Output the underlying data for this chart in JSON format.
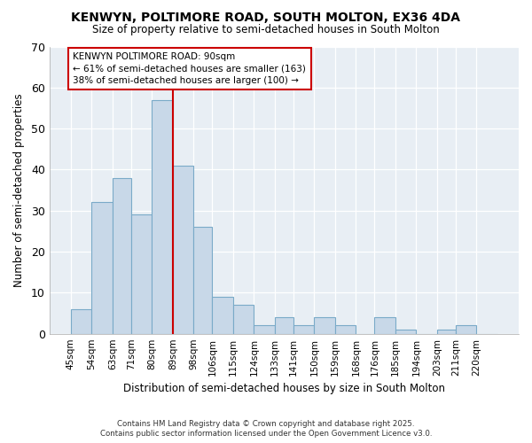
{
  "title": "KENWYN, POLTIMORE ROAD, SOUTH MOLTON, EX36 4DA",
  "subtitle": "Size of property relative to semi-detached houses in South Molton",
  "xlabel": "Distribution of semi-detached houses by size in South Molton",
  "ylabel": "Number of semi-detached properties",
  "bin_labels": [
    "45sqm",
    "54sqm",
    "63sqm",
    "71sqm",
    "80sqm",
    "89sqm",
    "98sqm",
    "106sqm",
    "115sqm",
    "124sqm",
    "133sqm",
    "141sqm",
    "150sqm",
    "159sqm",
    "168sqm",
    "176sqm",
    "185sqm",
    "194sqm",
    "203sqm",
    "211sqm",
    "220sqm"
  ],
  "bin_edges": [
    45,
    54,
    63,
    71,
    80,
    89,
    98,
    106,
    115,
    124,
    133,
    141,
    150,
    159,
    168,
    176,
    185,
    194,
    203,
    211,
    220
  ],
  "values": [
    6,
    32,
    38,
    29,
    57,
    41,
    26,
    9,
    7,
    2,
    4,
    2,
    4,
    2,
    0,
    4,
    1,
    0,
    1,
    2,
    0
  ],
  "bar_color": "#c8d8e8",
  "bar_edge_color": "#7aaac8",
  "vline_x": 89,
  "vline_color": "#cc0000",
  "annotation_title": "KENWYN POLTIMORE ROAD: 90sqm",
  "annotation_line1": "← 61% of semi-detached houses are smaller (163)",
  "annotation_line2": "38% of semi-detached houses are larger (100) →",
  "footer1": "Contains HM Land Registry data © Crown copyright and database right 2025.",
  "footer2": "Contains public sector information licensed under the Open Government Licence v3.0.",
  "bg_color": "#ffffff",
  "plot_bg_color": "#e8eef4",
  "ylim": [
    0,
    70
  ],
  "yticks": [
    0,
    10,
    20,
    30,
    40,
    50,
    60,
    70
  ]
}
